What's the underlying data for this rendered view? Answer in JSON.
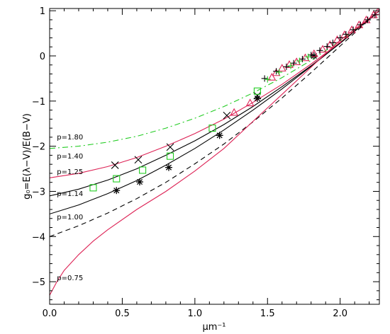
{
  "chart_data": {
    "type": "line",
    "title": "",
    "xlabel": "μm⁻¹",
    "ylabel": "g₀=E(λ−V)/E(B−V)",
    "xlim": [
      0,
      2.27
    ],
    "ylim": [
      -5.5,
      1.05
    ],
    "x_ticks": [
      0.0,
      0.5,
      1.0,
      1.5,
      2.0
    ],
    "x_tick_labels": [
      "0.0",
      "0.5",
      "1.0",
      "1.5",
      "2.0"
    ],
    "y_ticks": [
      -5,
      -4,
      -3,
      -2,
      -1,
      0,
      1
    ],
    "y_tick_labels": [
      "−5",
      "−4",
      "−3",
      "−2",
      "−1",
      "0",
      "1"
    ],
    "grid": false,
    "curves": [
      {
        "label": "p=1.80",
        "color": "#22cc22",
        "dash": "dashdot",
        "label_pos": [
          0.05,
          -1.85
        ],
        "points": [
          [
            0,
            -2.05
          ],
          [
            0.2,
            -2.0
          ],
          [
            0.4,
            -1.91
          ],
          [
            0.6,
            -1.78
          ],
          [
            0.8,
            -1.6
          ],
          [
            1.0,
            -1.38
          ],
          [
            1.2,
            -1.12
          ],
          [
            1.4,
            -0.82
          ],
          [
            1.6,
            -0.48
          ],
          [
            1.8,
            -0.1
          ],
          [
            2.0,
            0.33
          ],
          [
            2.27,
            1.0
          ]
        ]
      },
      {
        "label": "p=1.40",
        "color": "#dd2255",
        "dash": "solid",
        "label_pos": [
          0.05,
          -2.27
        ],
        "points": [
          [
            0,
            -2.7
          ],
          [
            0.2,
            -2.6
          ],
          [
            0.4,
            -2.45
          ],
          [
            0.6,
            -2.25
          ],
          [
            0.8,
            -2.0
          ],
          [
            1.0,
            -1.72
          ],
          [
            1.2,
            -1.4
          ],
          [
            1.4,
            -1.03
          ],
          [
            1.6,
            -0.63
          ],
          [
            1.8,
            -0.18
          ],
          [
            2.0,
            0.3
          ],
          [
            2.27,
            1.0
          ]
        ]
      },
      {
        "label": "p=1.25",
        "color": "#000000",
        "dash": "solid",
        "label_pos": [
          0.05,
          -2.62
        ],
        "points": [
          [
            0,
            -3.1
          ],
          [
            0.2,
            -2.95
          ],
          [
            0.4,
            -2.75
          ],
          [
            0.6,
            -2.5
          ],
          [
            0.8,
            -2.2
          ],
          [
            1.0,
            -1.88
          ],
          [
            1.2,
            -1.52
          ],
          [
            1.4,
            -1.12
          ],
          [
            1.6,
            -0.68
          ],
          [
            1.8,
            -0.22
          ],
          [
            2.0,
            0.28
          ],
          [
            2.27,
            1.0
          ]
        ]
      },
      {
        "label": "p=1.14",
        "color": "#000000",
        "dash": "solid",
        "label_pos": [
          0.05,
          -3.1
        ],
        "points": [
          [
            0,
            -3.5
          ],
          [
            0.2,
            -3.3
          ],
          [
            0.4,
            -3.05
          ],
          [
            0.6,
            -2.76
          ],
          [
            0.8,
            -2.42
          ],
          [
            1.0,
            -2.05
          ],
          [
            1.2,
            -1.64
          ],
          [
            1.4,
            -1.2
          ],
          [
            1.6,
            -0.73
          ],
          [
            1.8,
            -0.23
          ],
          [
            2.0,
            0.28
          ],
          [
            2.27,
            1.0
          ]
        ]
      },
      {
        "label": "p=1.00",
        "color": "#000000",
        "dash": "dashed",
        "label_pos": [
          0.05,
          -3.62
        ],
        "points": [
          [
            0,
            -4.0
          ],
          [
            0.2,
            -3.76
          ],
          [
            0.4,
            -3.48
          ],
          [
            0.6,
            -3.16
          ],
          [
            0.8,
            -2.8
          ],
          [
            1.0,
            -2.39
          ],
          [
            1.2,
            -1.95
          ],
          [
            1.4,
            -1.46
          ],
          [
            1.6,
            -0.93
          ],
          [
            1.8,
            -0.37
          ],
          [
            2.0,
            0.22
          ],
          [
            2.27,
            1.0
          ]
        ]
      },
      {
        "label": "p=0.75",
        "color": "#dd2255",
        "dash": "solid",
        "label_pos": [
          0.05,
          -4.97
        ],
        "points": [
          [
            0,
            -5.3
          ],
          [
            0.05,
            -5.0
          ],
          [
            0.1,
            -4.75
          ],
          [
            0.2,
            -4.4
          ],
          [
            0.3,
            -4.1
          ],
          [
            0.4,
            -3.85
          ],
          [
            0.6,
            -3.4
          ],
          [
            0.8,
            -3.0
          ],
          [
            1.0,
            -2.55
          ],
          [
            1.2,
            -2.05
          ],
          [
            1.4,
            -1.45
          ],
          [
            1.6,
            -0.85
          ],
          [
            1.8,
            -0.25
          ],
          [
            2.0,
            0.35
          ],
          [
            2.27,
            1.0
          ]
        ]
      }
    ],
    "series": [
      {
        "marker": "x",
        "color": "#000000",
        "points": [
          [
            0.45,
            -2.42
          ],
          [
            0.61,
            -2.3
          ],
          [
            0.83,
            -2.02
          ],
          [
            1.22,
            -1.32
          ],
          [
            1.43,
            -0.88
          ]
        ]
      },
      {
        "marker": "asterisk",
        "color": "#000000",
        "points": [
          [
            0.46,
            -2.98
          ],
          [
            0.62,
            -2.79
          ],
          [
            0.82,
            -2.47
          ],
          [
            1.17,
            -1.76
          ],
          [
            1.43,
            -0.94
          ],
          [
            1.82,
            0.0
          ]
        ]
      },
      {
        "marker": "square",
        "color": "#22cc22",
        "points": [
          [
            0.3,
            -2.92
          ],
          [
            0.46,
            -2.72
          ],
          [
            0.64,
            -2.53
          ],
          [
            0.83,
            -2.22
          ],
          [
            1.12,
            -1.6
          ],
          [
            1.43,
            -0.78
          ]
        ]
      },
      {
        "marker": "triangle",
        "color": "#dd2255",
        "points": [
          [
            1.27,
            -1.26
          ],
          [
            1.38,
            -1.05
          ],
          [
            1.53,
            -0.48
          ],
          [
            1.56,
            -0.38
          ],
          [
            1.6,
            -0.28
          ],
          [
            1.65,
            -0.2
          ],
          [
            1.7,
            -0.14
          ],
          [
            1.76,
            -0.05
          ],
          [
            1.82,
            0.04
          ],
          [
            1.88,
            0.14
          ],
          [
            1.93,
            0.24
          ],
          [
            1.98,
            0.35
          ],
          [
            2.03,
            0.46
          ],
          [
            2.08,
            0.57
          ],
          [
            2.13,
            0.68
          ],
          [
            2.18,
            0.79
          ],
          [
            2.23,
            0.9
          ],
          [
            2.26,
            0.97
          ]
        ]
      },
      {
        "marker": "plus",
        "color": "#000000",
        "points": [
          [
            1.48,
            -0.5
          ],
          [
            1.56,
            -0.34
          ],
          [
            1.63,
            -0.24
          ],
          [
            1.68,
            -0.16
          ],
          [
            1.74,
            -0.07
          ],
          [
            1.8,
            0.02
          ],
          [
            1.86,
            0.12
          ],
          [
            1.91,
            0.21
          ],
          [
            1.95,
            0.29
          ],
          [
            2.0,
            0.4
          ],
          [
            2.04,
            0.48
          ],
          [
            2.09,
            0.58
          ],
          [
            2.14,
            0.69
          ],
          [
            2.19,
            0.8
          ],
          [
            2.24,
            0.91
          ]
        ]
      },
      {
        "marker": "plus",
        "color": "#22cc22",
        "points": [
          [
            1.5,
            -0.52
          ],
          [
            1.58,
            -0.36
          ],
          [
            1.66,
            -0.22
          ],
          [
            1.72,
            -0.11
          ],
          [
            1.78,
            -0.02
          ]
        ]
      }
    ]
  }
}
